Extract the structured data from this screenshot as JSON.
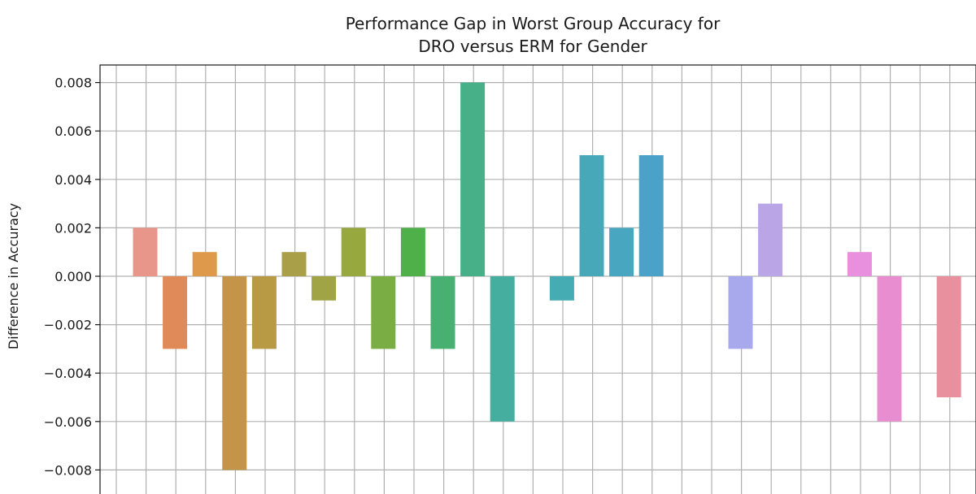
{
  "chart_data": {
    "type": "bar",
    "title_lines": [
      "Performance Gap in Worst Group Accuracy for",
      "DRO versus ERM for Gender"
    ],
    "xlabel": "",
    "ylabel": "Difference in Accuracy",
    "ylim": [
      -0.0088,
      0.0088
    ],
    "yticks": [
      -0.008,
      -0.006,
      -0.004,
      -0.002,
      0.0,
      0.002,
      0.004,
      0.006,
      0.008
    ],
    "ytick_labels": [
      "−0.008",
      "−0.006",
      "−0.004",
      "−0.002",
      "0.000",
      "0.002",
      "0.004",
      "0.006",
      "0.008"
    ],
    "grid": true,
    "values": [
      0.002,
      -0.003,
      0.001,
      -0.008,
      -0.003,
      0.001,
      -0.001,
      0.002,
      -0.003,
      0.002,
      -0.003,
      0.008,
      -0.006,
      0.0,
      -0.001,
      0.005,
      0.002,
      0.005,
      0.0,
      0.0,
      -0.003,
      0.003,
      0.0,
      0.0,
      0.001,
      -0.006,
      0.0,
      -0.005
    ],
    "colors": [
      "#e8968a",
      "#e08a5a",
      "#de9a4a",
      "#c49548",
      "#b89a45",
      "#a89f48",
      "#a0a445",
      "#96a83e",
      "#7aae45",
      "#4fb04a",
      "#48b070",
      "#48b088",
      "#45ae9e",
      "#44aeae",
      "#45acb4",
      "#46a8b8",
      "#48a6c0",
      "#4aa2c8",
      "#8ab0e0",
      "#9aa8e8",
      "#a8a8ec",
      "#baa6e6",
      "#cba2e6",
      "#dc9ae0",
      "#e890de",
      "#e88ed0",
      "#e890b8",
      "#e8909e"
    ]
  }
}
